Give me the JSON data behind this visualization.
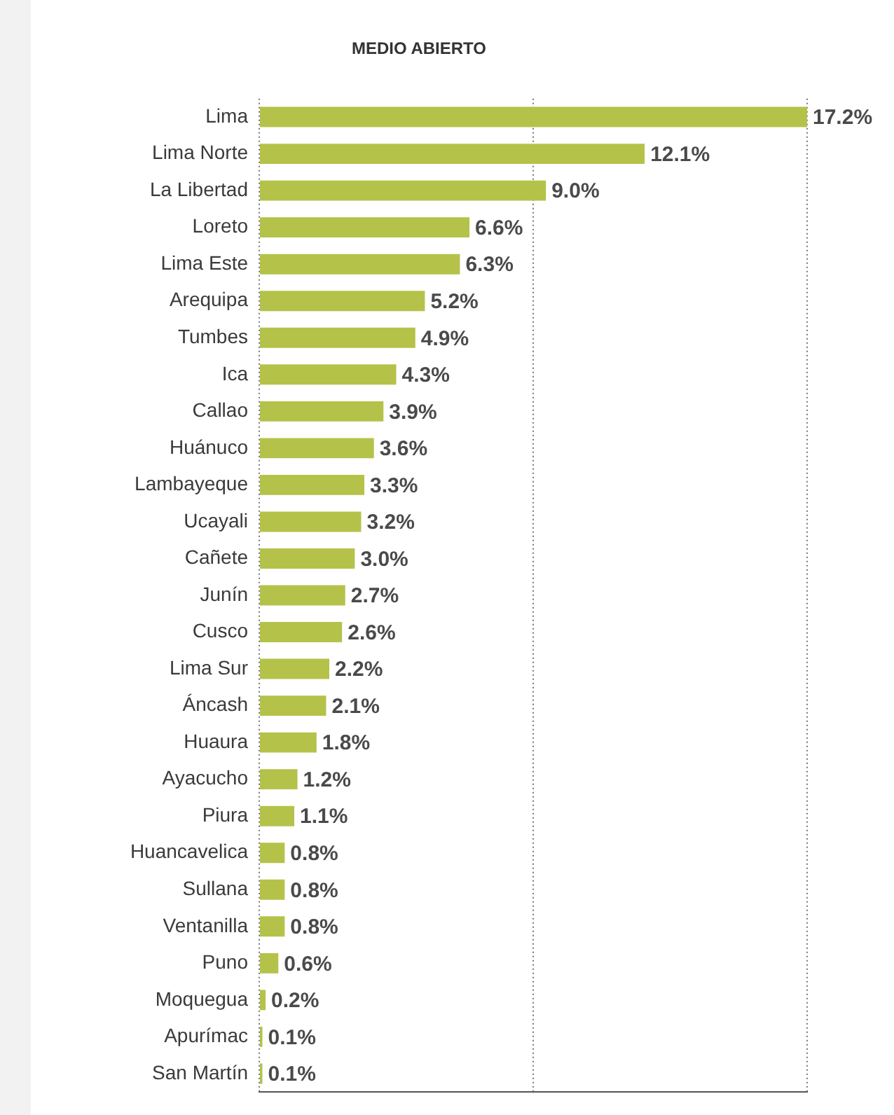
{
  "chart_data": {
    "type": "bar",
    "orientation": "horizontal",
    "title": "MEDIO ABIERTO",
    "categories": [
      "Lima",
      "Lima Norte",
      "La Libertad",
      "Loreto",
      "Lima Este",
      "Arequipa",
      "Tumbes",
      "Ica",
      "Callao",
      "Huánuco",
      "Lambayeque",
      "Ucayali",
      "Cañete",
      "Junín",
      "Cusco",
      "Lima Sur",
      "Áncash",
      "Huaura",
      "Ayacucho",
      "Piura",
      "Huancavelica",
      "Sullana",
      "Ventanilla",
      "Puno",
      "Moquegua",
      "Apurímac",
      "San Martín"
    ],
    "values": [
      17.2,
      12.1,
      9.0,
      6.6,
      6.3,
      5.2,
      4.9,
      4.3,
      3.9,
      3.6,
      3.3,
      3.2,
      3.0,
      2.7,
      2.6,
      2.2,
      2.1,
      1.8,
      1.2,
      1.1,
      0.8,
      0.8,
      0.8,
      0.6,
      0.2,
      0.1,
      0.1
    ],
    "value_labels": [
      "17.2%",
      "12.1%",
      "9.0%",
      "6.6%",
      "6.3%",
      "5.2%",
      "4.9%",
      "4.3%",
      "3.9%",
      "3.6%",
      "3.3%",
      "3.2%",
      "3.0%",
      "2.7%",
      "2.6%",
      "2.2%",
      "2.1%",
      "1.8%",
      "1.2%",
      "1.1%",
      "0.8%",
      "0.8%",
      "0.8%",
      "0.6%",
      "0.2%",
      "0.1%",
      "0.1%"
    ],
    "color": "#b5c249",
    "xlim": [
      0,
      17.2
    ],
    "xticks": [
      {
        "value": 0,
        "label": null
      },
      {
        "value": 8.6,
        "label": null
      },
      {
        "value": 17.2,
        "label": null
      }
    ],
    "grid": "x",
    "legend": false
  }
}
